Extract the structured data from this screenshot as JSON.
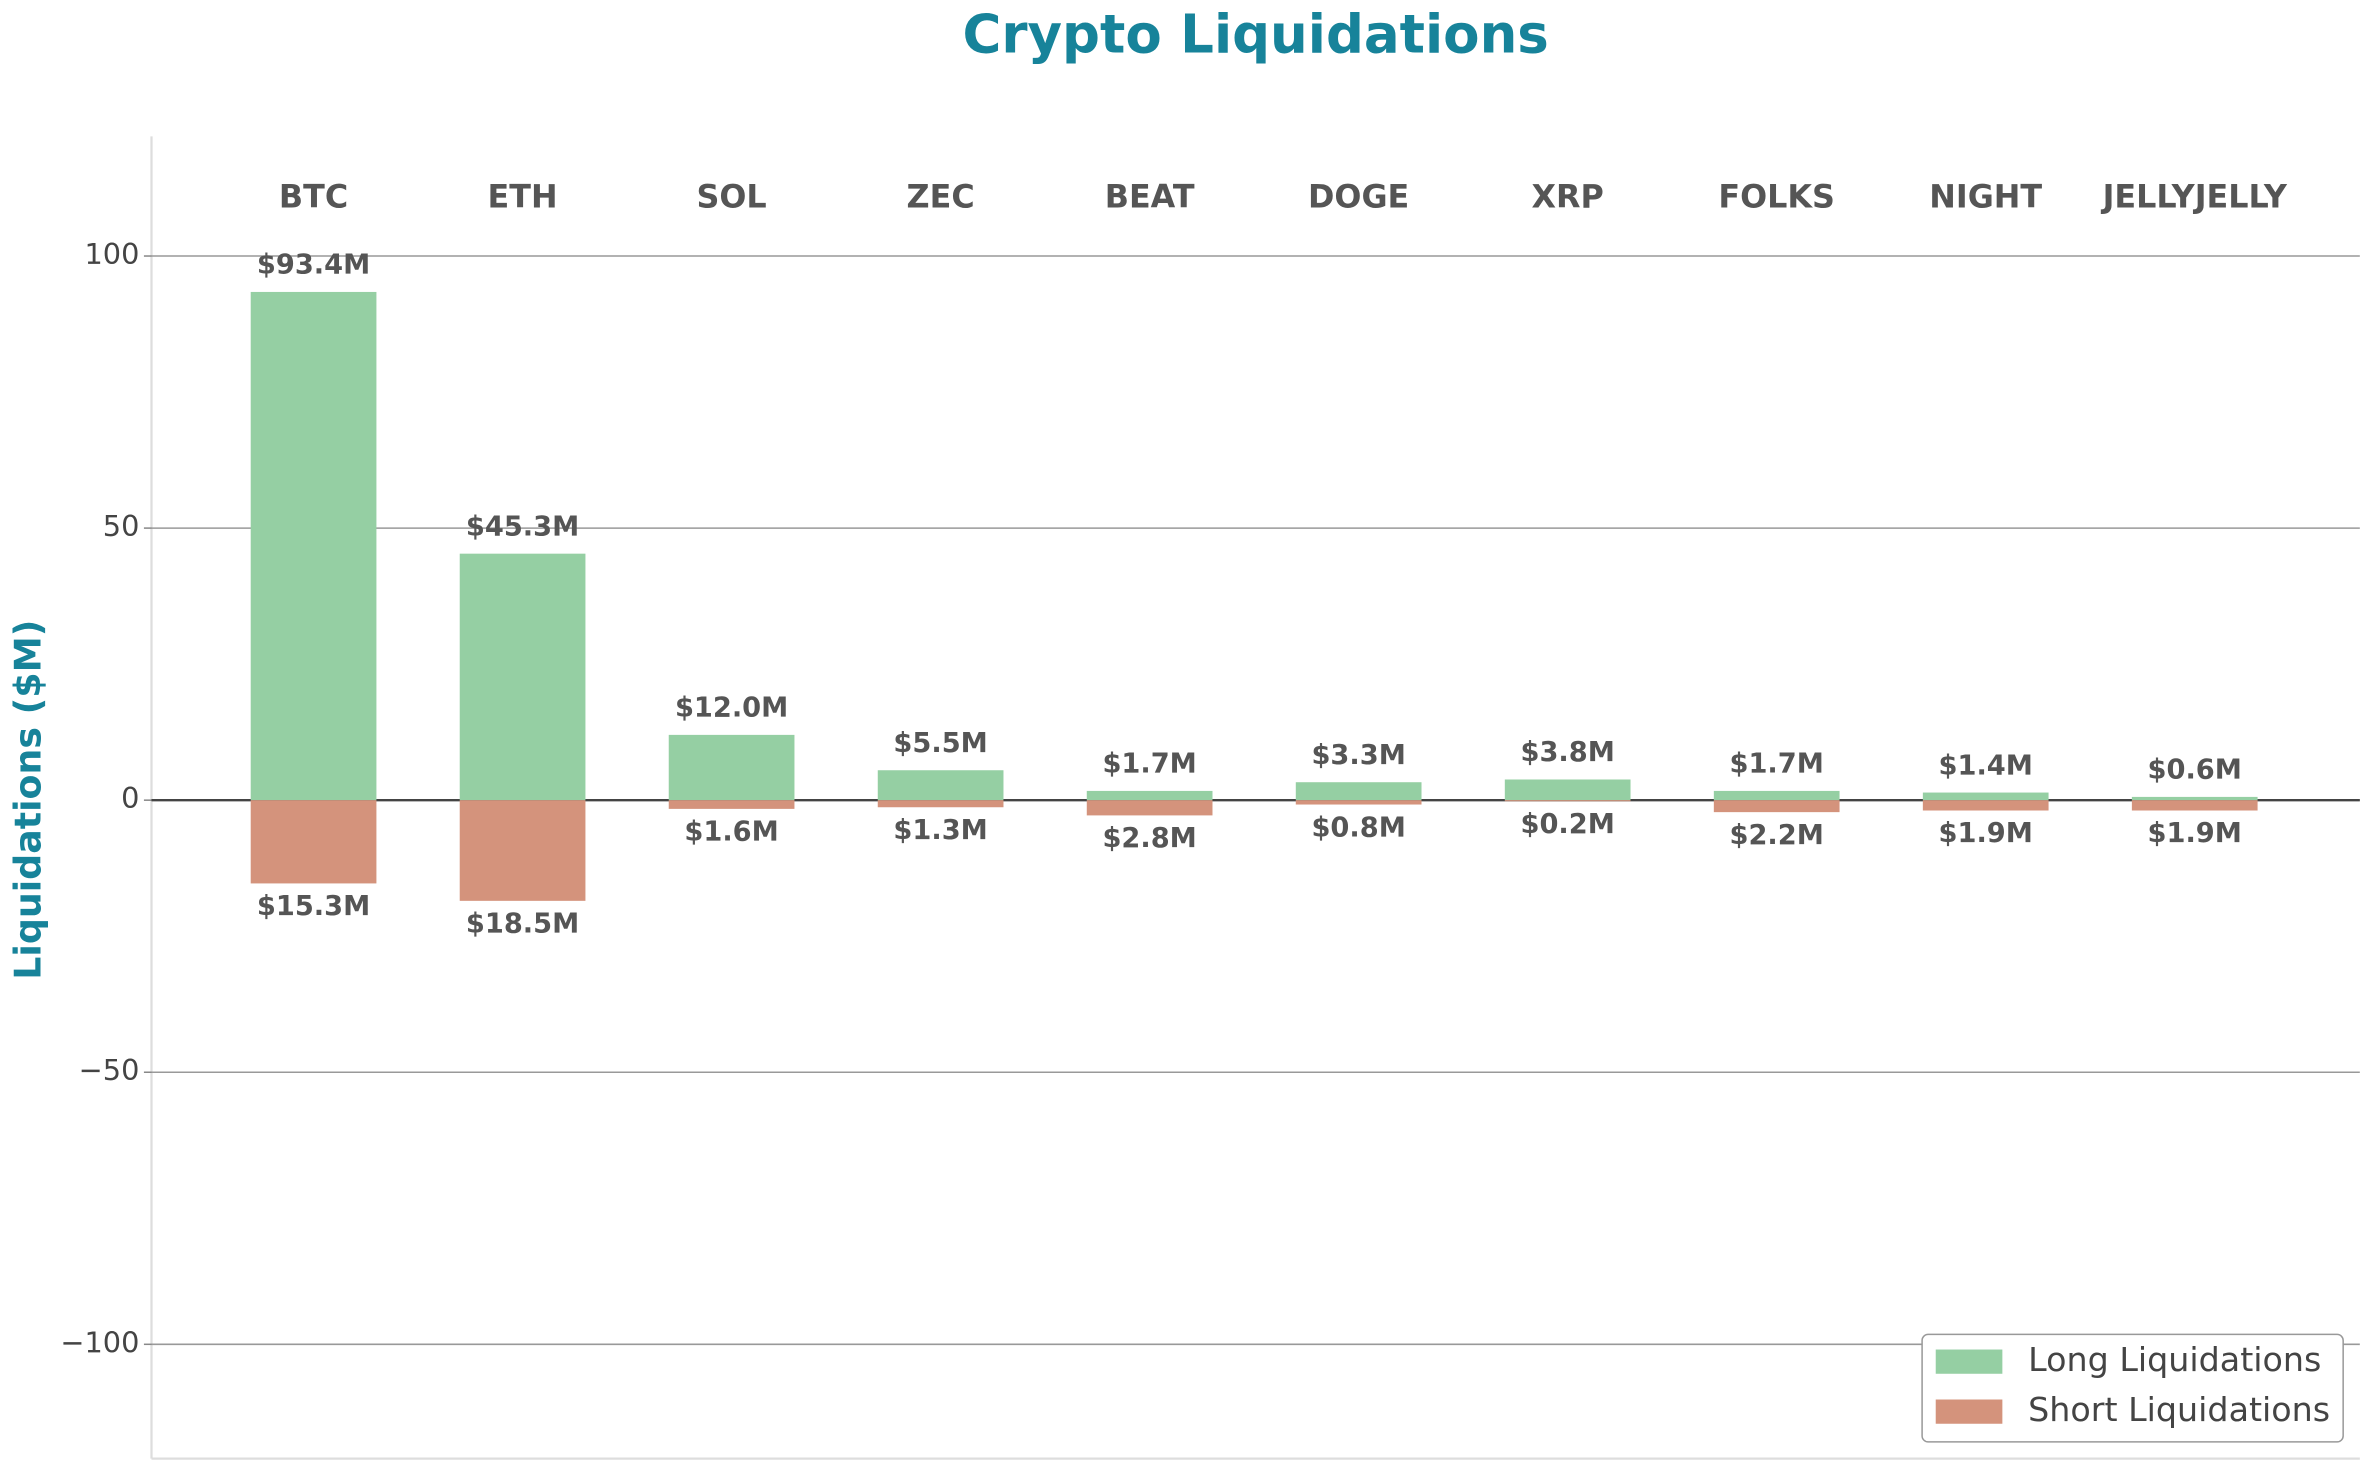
{
  "chart_data": {
    "type": "bar",
    "title": "Crypto Liquidations",
    "ylabel": "Liquidations ($M)",
    "categories": [
      "BTC",
      "ETH",
      "SOL",
      "ZEC",
      "BEAT",
      "DOGE",
      "XRP",
      "FOLKS",
      "NIGHT",
      "JELLYJELLY"
    ],
    "series": [
      {
        "name": "Long Liquidations",
        "color": "#95cfa3",
        "values": [
          93.4,
          45.3,
          12.0,
          5.5,
          1.7,
          3.3,
          3.8,
          1.7,
          1.4,
          0.6
        ],
        "value_labels": [
          "$93.4M",
          "$45.3M",
          "$12.0M",
          "$5.5M",
          "$1.7M",
          "$3.3M",
          "$3.8M",
          "$1.7M",
          "$1.4M",
          "$0.6M"
        ]
      },
      {
        "name": "Short Liquidations",
        "color": "#d4937c",
        "values": [
          -15.3,
          -18.5,
          -1.6,
          -1.3,
          -2.8,
          -0.8,
          -0.2,
          -2.2,
          -1.9,
          -1.9
        ],
        "value_labels": [
          "$15.3M",
          "$18.5M",
          "$1.6M",
          "$1.3M",
          "$2.8M",
          "$0.8M",
          "$0.2M",
          "$2.2M",
          "$1.9M",
          "$1.9M"
        ]
      }
    ],
    "ylim": [
      -121,
      122
    ],
    "yticks": [
      {
        "value": -100,
        "label": "−100"
      },
      {
        "value": -50,
        "label": "−50"
      },
      0,
      50,
      100
    ],
    "grid": true,
    "legend": "lower right"
  }
}
